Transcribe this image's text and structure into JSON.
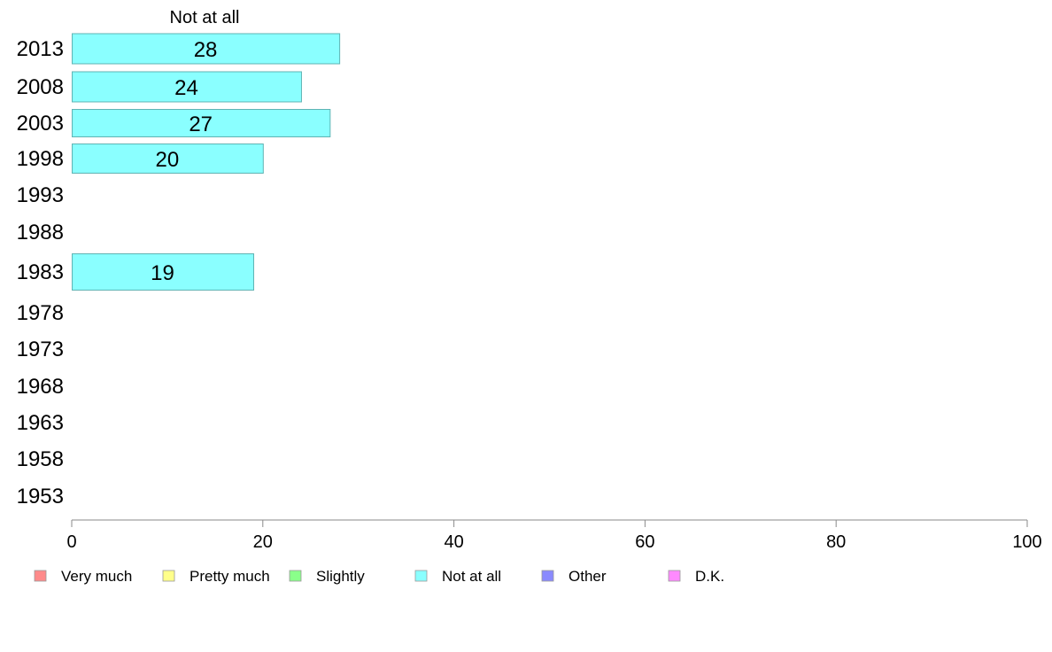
{
  "chart_data": {
    "type": "bar",
    "orientation": "horizontal",
    "title": "Not at all",
    "categories": [
      "2013",
      "2008",
      "2003",
      "1998",
      "1993",
      "1988",
      "1983",
      "1978",
      "1973",
      "1968",
      "1963",
      "1958",
      "1953"
    ],
    "series": [
      {
        "name": "Not at all",
        "values": [
          28,
          24,
          27,
          20,
          null,
          null,
          19,
          null,
          null,
          null,
          null,
          null,
          null
        ]
      }
    ],
    "xlim": [
      0,
      100
    ],
    "xticks": [
      0,
      20,
      40,
      60,
      80,
      100
    ],
    "grid": false,
    "legend_position": "bottom",
    "legend": [
      {
        "label": "Very much",
        "color": "#ff8a8a"
      },
      {
        "label": "Pretty much",
        "color": "#ffff8a"
      },
      {
        "label": "Slightly",
        "color": "#8aff8a"
      },
      {
        "label": "Not at all",
        "color": "#8affff"
      },
      {
        "label": "Other",
        "color": "#8a8aff"
      },
      {
        "label": "D.K.",
        "color": "#ff8aff"
      }
    ],
    "bar_color": "#8affff",
    "bar_stroke": "#5fb3b3"
  }
}
